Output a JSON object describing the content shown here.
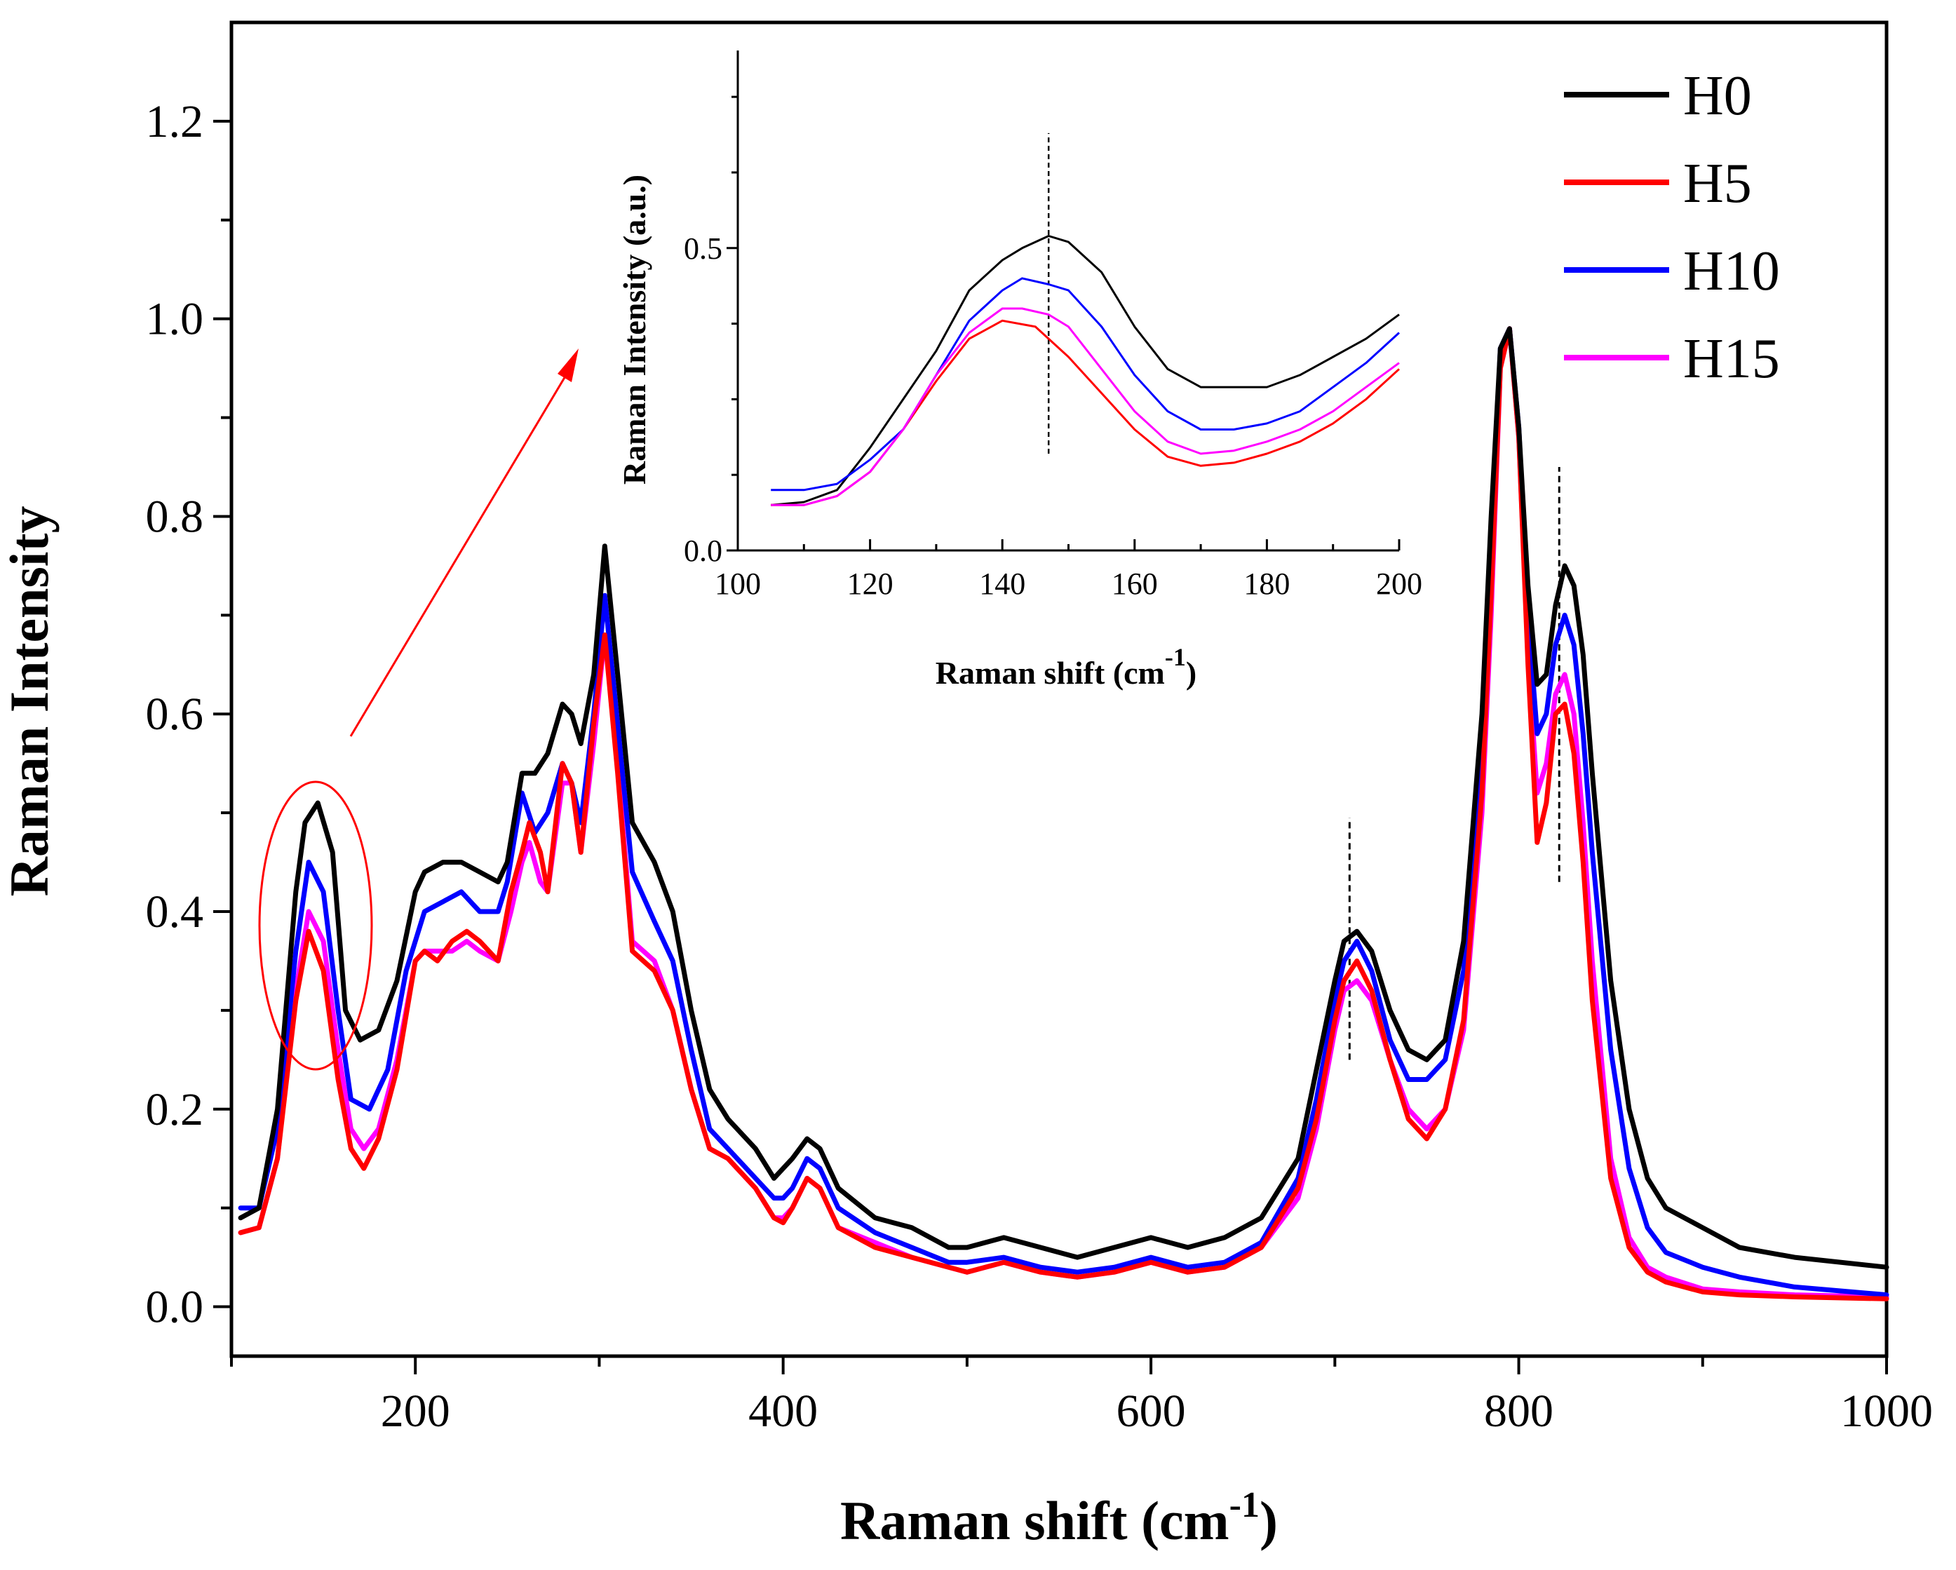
{
  "chart_data": [
    {
      "type": "line",
      "role": "main",
      "title": "",
      "xlabel": "Raman shift (cm",
      "xlabel_sup": "-1",
      "xlabel_close": ")",
      "ylabel": "Raman Intensity",
      "xlim": [
        100,
        1000
      ],
      "ylim": [
        -0.05,
        1.3
      ],
      "xticks": [
        "200",
        "400",
        "600",
        "800",
        "1000"
      ],
      "yticks": [
        "0.0",
        "0.2",
        "0.4",
        "0.6",
        "0.8",
        "1.0",
        "1.2"
      ],
      "legend": {
        "placement": "top-right",
        "entries": [
          "H0",
          "H5",
          "H10",
          "H15"
        ]
      },
      "series": [
        {
          "name": "H0",
          "color": "#000000",
          "x": [
            105,
            115,
            125,
            135,
            140,
            147,
            155,
            162,
            170,
            180,
            190,
            200,
            205,
            215,
            225,
            235,
            245,
            250,
            258,
            265,
            272,
            280,
            285,
            290,
            297,
            303,
            310,
            318,
            330,
            340,
            350,
            360,
            370,
            385,
            395,
            400,
            405,
            413,
            420,
            430,
            450,
            470,
            490,
            500,
            520,
            540,
            560,
            580,
            600,
            620,
            640,
            660,
            680,
            690,
            700,
            705,
            712,
            720,
            730,
            740,
            750,
            760,
            770,
            780,
            785,
            790,
            795,
            800,
            805,
            810,
            815,
            820,
            825,
            830,
            835,
            840,
            850,
            860,
            870,
            880,
            900,
            920,
            950,
            1000
          ],
          "y": [
            0.09,
            0.1,
            0.2,
            0.42,
            0.49,
            0.51,
            0.46,
            0.3,
            0.27,
            0.28,
            0.33,
            0.42,
            0.44,
            0.45,
            0.45,
            0.44,
            0.43,
            0.45,
            0.54,
            0.54,
            0.56,
            0.61,
            0.6,
            0.57,
            0.64,
            0.77,
            0.64,
            0.49,
            0.45,
            0.4,
            0.3,
            0.22,
            0.19,
            0.16,
            0.13,
            0.14,
            0.15,
            0.17,
            0.16,
            0.12,
            0.09,
            0.08,
            0.06,
            0.06,
            0.07,
            0.06,
            0.05,
            0.06,
            0.07,
            0.06,
            0.07,
            0.09,
            0.15,
            0.24,
            0.33,
            0.37,
            0.38,
            0.36,
            0.3,
            0.26,
            0.25,
            0.27,
            0.37,
            0.6,
            0.8,
            0.97,
            0.99,
            0.89,
            0.73,
            0.63,
            0.64,
            0.71,
            0.75,
            0.73,
            0.66,
            0.54,
            0.33,
            0.2,
            0.13,
            0.1,
            0.08,
            0.06,
            0.05,
            0.04
          ]
        },
        {
          "name": "H5",
          "color": "#ff0000",
          "x": [
            105,
            115,
            125,
            135,
            142,
            150,
            158,
            165,
            172,
            180,
            190,
            200,
            205,
            212,
            220,
            228,
            235,
            245,
            252,
            258,
            262,
            268,
            272,
            280,
            285,
            290,
            297,
            303,
            310,
            318,
            330,
            340,
            350,
            360,
            370,
            385,
            395,
            400,
            405,
            413,
            420,
            430,
            450,
            470,
            490,
            500,
            520,
            540,
            560,
            580,
            600,
            620,
            640,
            660,
            680,
            690,
            700,
            705,
            712,
            720,
            730,
            740,
            750,
            760,
            770,
            780,
            785,
            790,
            795,
            800,
            805,
            810,
            815,
            820,
            825,
            830,
            835,
            840,
            850,
            860,
            870,
            880,
            900,
            920,
            950,
            1000
          ],
          "y": [
            0.075,
            0.08,
            0.15,
            0.31,
            0.38,
            0.34,
            0.23,
            0.16,
            0.14,
            0.17,
            0.24,
            0.35,
            0.36,
            0.35,
            0.37,
            0.38,
            0.37,
            0.35,
            0.42,
            0.46,
            0.49,
            0.46,
            0.42,
            0.55,
            0.53,
            0.46,
            0.59,
            0.68,
            0.54,
            0.36,
            0.34,
            0.3,
            0.22,
            0.16,
            0.15,
            0.12,
            0.09,
            0.085,
            0.1,
            0.13,
            0.12,
            0.08,
            0.06,
            0.05,
            0.04,
            0.035,
            0.045,
            0.035,
            0.03,
            0.035,
            0.045,
            0.035,
            0.04,
            0.06,
            0.12,
            0.19,
            0.29,
            0.33,
            0.35,
            0.32,
            0.25,
            0.19,
            0.17,
            0.2,
            0.29,
            0.52,
            0.72,
            0.95,
            0.99,
            0.88,
            0.65,
            0.47,
            0.51,
            0.6,
            0.61,
            0.56,
            0.45,
            0.31,
            0.13,
            0.06,
            0.035,
            0.025,
            0.015,
            0.012,
            0.01,
            0.008
          ]
        },
        {
          "name": "H10",
          "color": "#0000ff",
          "x": [
            105,
            115,
            125,
            135,
            142,
            150,
            158,
            165,
            175,
            185,
            195,
            205,
            215,
            225,
            235,
            245,
            250,
            258,
            265,
            272,
            280,
            285,
            290,
            297,
            303,
            310,
            318,
            330,
            340,
            350,
            360,
            370,
            385,
            395,
            400,
            405,
            413,
            420,
            430,
            450,
            470,
            490,
            500,
            520,
            540,
            560,
            580,
            600,
            620,
            640,
            660,
            680,
            690,
            700,
            705,
            712,
            720,
            730,
            740,
            750,
            760,
            770,
            780,
            785,
            790,
            795,
            800,
            805,
            810,
            815,
            820,
            825,
            830,
            835,
            840,
            850,
            860,
            870,
            880,
            900,
            920,
            950,
            1000
          ],
          "y": [
            0.1,
            0.1,
            0.18,
            0.36,
            0.45,
            0.42,
            0.3,
            0.21,
            0.2,
            0.24,
            0.34,
            0.4,
            0.41,
            0.42,
            0.4,
            0.4,
            0.43,
            0.52,
            0.48,
            0.5,
            0.55,
            0.53,
            0.49,
            0.6,
            0.72,
            0.59,
            0.44,
            0.39,
            0.35,
            0.26,
            0.18,
            0.16,
            0.13,
            0.11,
            0.11,
            0.12,
            0.15,
            0.14,
            0.1,
            0.075,
            0.06,
            0.045,
            0.045,
            0.05,
            0.04,
            0.035,
            0.04,
            0.05,
            0.04,
            0.045,
            0.065,
            0.13,
            0.21,
            0.31,
            0.35,
            0.37,
            0.34,
            0.27,
            0.23,
            0.23,
            0.25,
            0.34,
            0.57,
            0.77,
            0.97,
            0.99,
            0.89,
            0.7,
            0.58,
            0.6,
            0.67,
            0.7,
            0.67,
            0.58,
            0.46,
            0.26,
            0.14,
            0.08,
            0.055,
            0.04,
            0.03,
            0.02,
            0.012
          ]
        },
        {
          "name": "H15",
          "color": "#ff00ff",
          "x": [
            105,
            115,
            125,
            135,
            142,
            150,
            158,
            165,
            172,
            180,
            190,
            200,
            205,
            212,
            220,
            228,
            235,
            245,
            252,
            258,
            262,
            268,
            272,
            280,
            285,
            290,
            297,
            303,
            310,
            318,
            330,
            340,
            350,
            360,
            370,
            385,
            395,
            400,
            405,
            413,
            420,
            430,
            450,
            470,
            490,
            500,
            520,
            540,
            560,
            580,
            600,
            620,
            640,
            660,
            680,
            690,
            700,
            705,
            712,
            720,
            730,
            740,
            750,
            760,
            770,
            780,
            785,
            790,
            795,
            800,
            805,
            810,
            815,
            820,
            825,
            830,
            835,
            840,
            850,
            860,
            870,
            880,
            900,
            920,
            950,
            1000
          ],
          "y": [
            0.075,
            0.08,
            0.15,
            0.32,
            0.4,
            0.37,
            0.26,
            0.18,
            0.16,
            0.18,
            0.25,
            0.35,
            0.36,
            0.36,
            0.36,
            0.37,
            0.36,
            0.35,
            0.4,
            0.45,
            0.47,
            0.43,
            0.42,
            0.53,
            0.53,
            0.46,
            0.57,
            0.68,
            0.55,
            0.37,
            0.35,
            0.3,
            0.22,
            0.16,
            0.15,
            0.12,
            0.09,
            0.09,
            0.1,
            0.13,
            0.12,
            0.08,
            0.065,
            0.05,
            0.04,
            0.035,
            0.045,
            0.035,
            0.03,
            0.035,
            0.045,
            0.035,
            0.04,
            0.06,
            0.11,
            0.18,
            0.28,
            0.32,
            0.33,
            0.31,
            0.25,
            0.2,
            0.18,
            0.2,
            0.28,
            0.5,
            0.7,
            0.95,
            0.99,
            0.88,
            0.66,
            0.52,
            0.55,
            0.62,
            0.64,
            0.6,
            0.49,
            0.35,
            0.15,
            0.07,
            0.04,
            0.03,
            0.018,
            0.015,
            0.012,
            0.01
          ]
        }
      ],
      "reference_lines_x": [
        708,
        822
      ],
      "annotation": "red ellipse highlights the peak near 145 cm-1 with an arrow pointing to the inset"
    },
    {
      "type": "line",
      "role": "inset",
      "title": "",
      "xlabel": "Raman shift (cm",
      "xlabel_sup": "-1",
      "xlabel_close": ")",
      "ylabel": "Raman Intensity (a.u.)",
      "xlim": [
        100,
        200
      ],
      "ylim": [
        0,
        0.8
      ],
      "xticks": [
        "100",
        "120",
        "140",
        "160",
        "180",
        "200"
      ],
      "yticks": [
        "0.0",
        "0.5"
      ],
      "reference_lines_x": [
        147
      ],
      "series": [
        {
          "name": "H0",
          "color": "#000000",
          "x": [
            105,
            110,
            115,
            120,
            125,
            130,
            135,
            140,
            143,
            147,
            150,
            155,
            160,
            165,
            170,
            175,
            180,
            185,
            190,
            195,
            200
          ],
          "y": [
            0.075,
            0.08,
            0.1,
            0.17,
            0.25,
            0.33,
            0.43,
            0.48,
            0.5,
            0.52,
            0.51,
            0.46,
            0.37,
            0.3,
            0.27,
            0.27,
            0.27,
            0.29,
            0.32,
            0.35,
            0.39
          ]
        },
        {
          "name": "H5",
          "color": "#ff0000",
          "x": [
            105,
            110,
            115,
            120,
            125,
            130,
            135,
            140,
            145,
            150,
            155,
            160,
            165,
            170,
            175,
            180,
            185,
            190,
            195,
            200
          ],
          "y": [
            0.075,
            0.075,
            0.09,
            0.13,
            0.2,
            0.28,
            0.35,
            0.38,
            0.37,
            0.32,
            0.26,
            0.2,
            0.155,
            0.14,
            0.145,
            0.16,
            0.18,
            0.21,
            0.25,
            0.3
          ]
        },
        {
          "name": "H10",
          "color": "#0000ff",
          "x": [
            105,
            110,
            115,
            120,
            125,
            130,
            135,
            140,
            143,
            147,
            150,
            155,
            160,
            165,
            170,
            175,
            180,
            185,
            190,
            195,
            200
          ],
          "y": [
            0.1,
            0.1,
            0.11,
            0.15,
            0.2,
            0.29,
            0.38,
            0.43,
            0.45,
            0.44,
            0.43,
            0.37,
            0.29,
            0.23,
            0.2,
            0.2,
            0.21,
            0.23,
            0.27,
            0.31,
            0.36
          ]
        },
        {
          "name": "H15",
          "color": "#ff00ff",
          "x": [
            105,
            110,
            115,
            120,
            125,
            130,
            135,
            140,
            143,
            147,
            150,
            155,
            160,
            165,
            170,
            175,
            180,
            185,
            190,
            195,
            200
          ],
          "y": [
            0.075,
            0.075,
            0.09,
            0.13,
            0.2,
            0.29,
            0.36,
            0.4,
            0.4,
            0.39,
            0.37,
            0.3,
            0.23,
            0.18,
            0.16,
            0.165,
            0.18,
            0.2,
            0.23,
            0.27,
            0.31
          ]
        }
      ]
    }
  ]
}
